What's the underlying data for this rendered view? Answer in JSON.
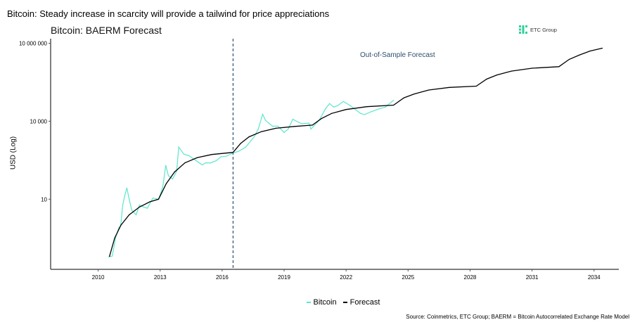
{
  "header": {
    "title": "Bitcoin: Steady increase in scarcity will provide a tailwind for price appreciations",
    "logo_text": "ETC Group"
  },
  "footer": {
    "source": "Source: Coinmetrics, ETC Group; BAERM = Bitcoin Autocorrelated Exchange Rate Model"
  },
  "colors": {
    "bitcoin": "#5ce6cc",
    "forecast": "#000000",
    "vline": "#2c4f6e",
    "logo": "#2fd29a"
  },
  "chart_data": {
    "type": "line",
    "title": "Bitcoin: BAERM Forecast",
    "xlabel": "",
    "ylabel": "USD (Log)",
    "y_scale": "log",
    "xlim": [
      2007.7,
      2035.2
    ],
    "ylim": [
      0.02,
      15000000
    ],
    "x_ticks": [
      2010,
      2013,
      2016,
      2019,
      2022,
      2025,
      2028,
      2031,
      2034
    ],
    "x_tick_labels": [
      "2010",
      "2013",
      "2016",
      "2019",
      "2022",
      "2025",
      "2028",
      "2031",
      "2034"
    ],
    "y_ticks": [
      10,
      10000,
      10000000
    ],
    "y_tick_labels": [
      "10",
      "10 000",
      "10 000 000"
    ],
    "grid": false,
    "legend_position": "bottom",
    "vertical_line": {
      "x": 2016.53,
      "style": "dashed"
    },
    "annotations": [
      {
        "text": "Out-of-Sample Forecast"
      }
    ],
    "series": [
      {
        "name": "Bitcoin",
        "x": [
          2010.51,
          2010.68,
          2010.85,
          2011.0,
          2011.09,
          2011.19,
          2011.3,
          2011.39,
          2011.5,
          2011.63,
          2011.84,
          2012.0,
          2012.2,
          2012.38,
          2012.65,
          2012.93,
          2013.13,
          2013.27,
          2013.4,
          2013.6,
          2013.8,
          2013.9,
          2014.15,
          2014.4,
          2014.7,
          2015.03,
          2015.2,
          2015.44,
          2015.7,
          2015.95,
          2016.2,
          2016.53,
          2016.8,
          2017.14,
          2017.55,
          2017.75,
          2017.96,
          2018.1,
          2018.44,
          2018.7,
          2019.0,
          2019.2,
          2019.42,
          2019.6,
          2019.86,
          2020.2,
          2020.3,
          2020.7,
          2021.0,
          2021.2,
          2021.4,
          2021.6,
          2021.87,
          2022.2,
          2022.4,
          2022.7,
          2022.9,
          2023.2,
          2023.6,
          2023.9,
          2024.1,
          2024.3
        ],
        "y": [
          0.06,
          0.065,
          0.35,
          0.8,
          0.93,
          6,
          15,
          27,
          10,
          3.7,
          2.5,
          6,
          5,
          4.5,
          11,
          10,
          30,
          200,
          80,
          60,
          120,
          1000,
          540,
          470,
          320,
          210,
          250,
          250,
          300,
          430,
          450,
          600,
          700,
          1000,
          2500,
          5000,
          18600,
          10700,
          6400,
          6500,
          3700,
          5000,
          12000,
          10000,
          8000,
          8500,
          5000,
          11000,
          30000,
          48000,
          35000,
          40000,
          58000,
          40000,
          30000,
          20000,
          18000,
          23000,
          30000,
          35000,
          48000,
          64000
        ]
      },
      {
        "name": "Forecast",
        "x": [
          2010.55,
          2010.8,
          2011.1,
          2011.5,
          2012.0,
          2012.5,
          2012.92,
          2013.3,
          2013.7,
          2014.2,
          2014.8,
          2015.5,
          2016.53,
          2016.9,
          2017.3,
          2017.9,
          2018.6,
          2019.5,
          2020.37,
          2020.8,
          2021.3,
          2022.0,
          2023.0,
          2024.3,
          2024.8,
          2025.3,
          2026.0,
          2027.0,
          2028.3,
          2028.8,
          2029.3,
          2030.0,
          2031.0,
          2032.3,
          2032.8,
          2033.3,
          2033.8,
          2034.4
        ],
        "y": [
          0.063,
          0.32,
          1,
          2.5,
          5,
          7.9,
          10,
          40,
          112,
          251,
          398,
          525,
          631,
          1413,
          2512,
          3981,
          5370,
          6310,
          7079,
          12589,
          19953,
          28184,
          36308,
          41687,
          79433,
          112202,
          158489,
          199526,
          223872,
          416869,
          602560,
          851138,
          1096478,
          1258925,
          2398833,
          3548134,
          5011872,
          6456542
        ]
      }
    ]
  }
}
